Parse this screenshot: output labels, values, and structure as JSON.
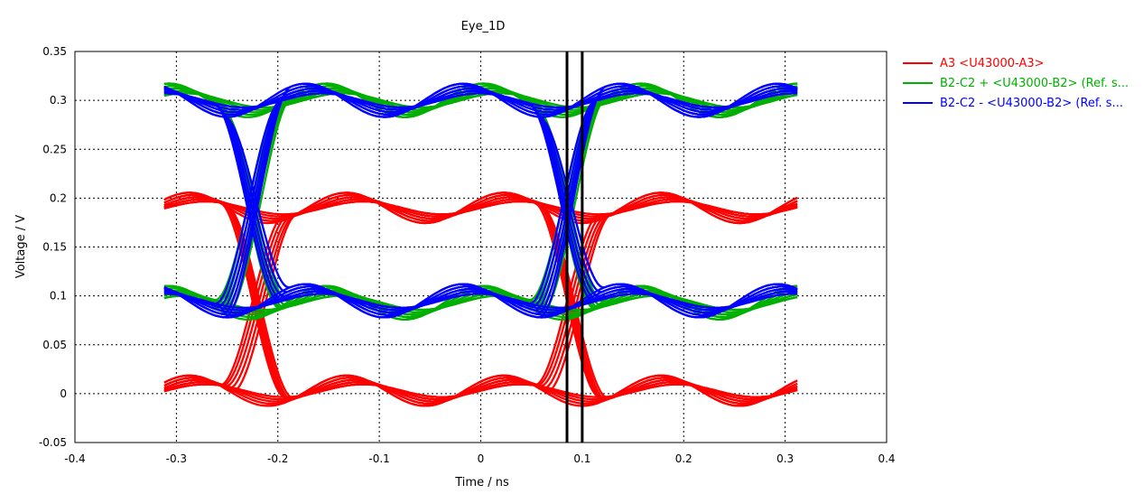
{
  "chart_data": {
    "type": "line",
    "title": "Eye_1D",
    "xlabel": "Time / ns",
    "ylabel": "Voltage / V",
    "xlim": [
      -0.4,
      0.4
    ],
    "ylim": [
      -0.05,
      0.35
    ],
    "x_ticks": [
      "-0.4",
      "-0.3",
      "-0.2",
      "-0.1",
      "0",
      "0.1",
      "0.2",
      "0.3",
      "0.4"
    ],
    "y_ticks": [
      "-0.05",
      "0",
      "0.05",
      "0.1",
      "0.15",
      "0.2",
      "0.25",
      "0.3",
      "0.35"
    ],
    "grid": true,
    "legend_position": "right",
    "series": [
      {
        "name": "A3 <U43000-A3>",
        "color": "#ff0000",
        "high": 0.19,
        "low": 0.003,
        "crossings": [
          -0.22,
          0.09
        ]
      },
      {
        "name": "B2-C2 + <U43000-B2> (Ref. s...",
        "color": "#00b000",
        "high": 0.3,
        "low": 0.093,
        "crossings": [
          -0.225,
          0.085
        ]
      },
      {
        "name": "B2-C2 - <U43000-B2> (Ref. s...",
        "color": "#0000ff",
        "high": 0.3,
        "low": 0.095,
        "crossings": [
          -0.225,
          0.085
        ]
      }
    ],
    "markers_x": [
      0.085,
      0.1
    ]
  }
}
